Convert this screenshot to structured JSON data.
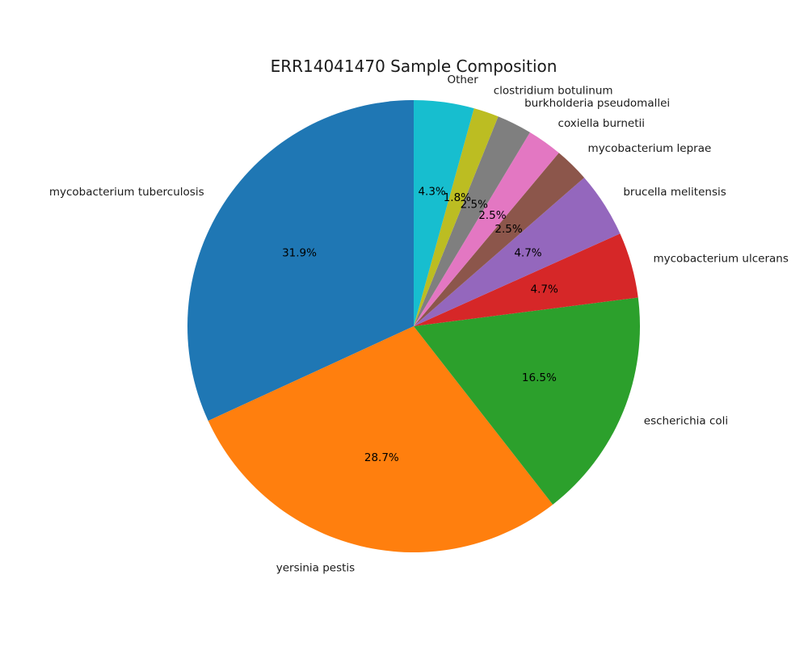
{
  "chart_data": {
    "type": "pie",
    "title": "ERR14041470 Sample Composition",
    "start_angle_deg": 90,
    "direction": "counterclockwise",
    "legend": "none",
    "slices": [
      {
        "label": "mycobacterium tuberculosis",
        "value": 31.9,
        "pct_label": "31.9%",
        "color": "#1f77b4"
      },
      {
        "label": "yersinia pestis",
        "value": 28.7,
        "pct_label": "28.7%",
        "color": "#ff7f0e"
      },
      {
        "label": "escherichia coli",
        "value": 16.5,
        "pct_label": "16.5%",
        "color": "#2ca02c"
      },
      {
        "label": "mycobacterium ulcerans",
        "value": 4.7,
        "pct_label": "4.7%",
        "color": "#d62728"
      },
      {
        "label": "brucella melitensis",
        "value": 4.7,
        "pct_label": "4.7%",
        "color": "#9467bd"
      },
      {
        "label": "mycobacterium leprae",
        "value": 2.5,
        "pct_label": "2.5%",
        "color": "#8c564b"
      },
      {
        "label": "coxiella burnetii",
        "value": 2.5,
        "pct_label": "2.5%",
        "color": "#e377c2"
      },
      {
        "label": "burkholderia pseudomallei",
        "value": 2.5,
        "pct_label": "2.5%",
        "color": "#7f7f7f"
      },
      {
        "label": "clostridium botulinum",
        "value": 1.8,
        "pct_label": "1.8%",
        "color": "#bcbd22"
      },
      {
        "label": "Other",
        "value": 4.3,
        "pct_label": "4.3%",
        "color": "#17becf"
      }
    ]
  }
}
